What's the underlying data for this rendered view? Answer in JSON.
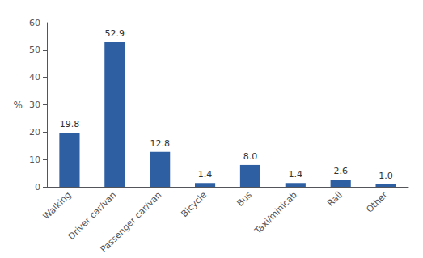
{
  "chart_data": {
    "type": "bar",
    "ylabel": "%",
    "categories": [
      "Walking",
      "Driver car/van",
      "Passenger car/van",
      "Bicycle",
      "Bus",
      "Taxi/minicab",
      "Rail",
      "Other"
    ],
    "values": [
      19.8,
      52.9,
      12.8,
      1.4,
      8.0,
      1.4,
      2.6,
      1.0
    ],
    "value_labels": [
      "19.8",
      "52.9",
      "12.8",
      "1.4",
      "8.0",
      "1.4",
      "2.6",
      "1.0"
    ],
    "data_labels": true,
    "color": "#2E5FA3",
    "ylim": [
      0,
      60
    ],
    "yticks": [
      0,
      10,
      20,
      30,
      40,
      50,
      60
    ],
    "grid": false
  }
}
